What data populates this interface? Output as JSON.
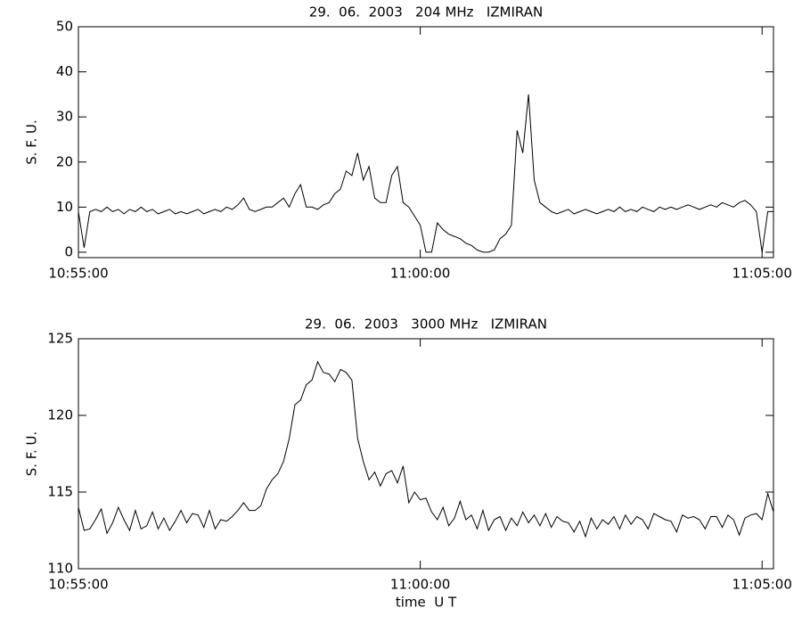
{
  "chart_data": [
    {
      "type": "line",
      "title": "29.  06.  2003   204 MHz   IZMIRAN",
      "y_label": "S. F. U.",
      "xlim": [
        "10:55:00",
        "11:05:10"
      ],
      "xticks": [
        "10:55:00",
        "11:00:00",
        "11:05:00"
      ],
      "ylim": [
        -1.2,
        50
      ],
      "yticks": [
        0,
        10,
        20,
        30,
        40,
        50
      ],
      "color": "#000000",
      "x": [
        "10:55:00",
        "10:55:05",
        "10:55:10",
        "10:55:15",
        "10:55:20",
        "10:55:25",
        "10:55:30",
        "10:55:35",
        "10:55:40",
        "10:55:45",
        "10:55:50",
        "10:55:55",
        "10:56:00",
        "10:56:05",
        "10:56:10",
        "10:56:15",
        "10:56:20",
        "10:56:25",
        "10:56:30",
        "10:56:35",
        "10:56:40",
        "10:56:45",
        "10:56:50",
        "10:56:55",
        "10:57:00",
        "10:57:05",
        "10:57:10",
        "10:57:15",
        "10:57:20",
        "10:57:25",
        "10:57:30",
        "10:57:35",
        "10:57:40",
        "10:57:45",
        "10:57:50",
        "10:57:55",
        "10:58:00",
        "10:58:05",
        "10:58:10",
        "10:58:15",
        "10:58:20",
        "10:58:25",
        "10:58:30",
        "10:58:35",
        "10:58:40",
        "10:58:45",
        "10:58:50",
        "10:58:55",
        "10:59:00",
        "10:59:05",
        "10:59:10",
        "10:59:15",
        "10:59:20",
        "10:59:25",
        "10:59:30",
        "10:59:35",
        "10:59:40",
        "10:59:45",
        "10:59:50",
        "10:59:55",
        "11:00:00",
        "11:00:05",
        "11:00:10",
        "11:00:15",
        "11:00:20",
        "11:00:25",
        "11:00:30",
        "11:00:35",
        "11:00:40",
        "11:00:45",
        "11:00:50",
        "11:00:55",
        "11:01:00",
        "11:01:05",
        "11:01:10",
        "11:01:15",
        "11:01:20",
        "11:01:25",
        "11:01:30",
        "11:01:35",
        "11:01:40",
        "11:01:45",
        "11:01:50",
        "11:01:55",
        "11:02:00",
        "11:02:05",
        "11:02:10",
        "11:02:15",
        "11:02:20",
        "11:02:25",
        "11:02:30",
        "11:02:35",
        "11:02:40",
        "11:02:45",
        "11:02:50",
        "11:02:55",
        "11:03:00",
        "11:03:05",
        "11:03:10",
        "11:03:15",
        "11:03:20",
        "11:03:25",
        "11:03:30",
        "11:03:35",
        "11:03:40",
        "11:03:45",
        "11:03:50",
        "11:03:55",
        "11:04:00",
        "11:04:05",
        "11:04:10",
        "11:04:15",
        "11:04:20",
        "11:04:25",
        "11:04:30",
        "11:04:35",
        "11:04:40",
        "11:04:45",
        "11:04:50",
        "11:04:55",
        "11:05:00",
        "11:05:05",
        "11:05:10"
      ],
      "values": [
        9,
        1,
        9,
        9.5,
        9,
        10,
        9,
        9.5,
        8.5,
        9.5,
        9,
        10,
        9,
        9.5,
        8.5,
        9,
        9.5,
        8.5,
        9,
        8.5,
        9,
        9.5,
        8.5,
        9,
        9.5,
        9,
        10,
        9.5,
        10.5,
        12,
        9.5,
        9,
        9.5,
        10,
        10,
        11,
        12,
        10,
        13,
        15,
        10,
        10,
        9.5,
        10.5,
        11,
        13,
        14,
        18,
        17,
        22,
        16,
        19,
        12,
        11,
        11,
        17,
        19,
        11,
        10,
        8,
        6,
        0,
        0,
        6.5,
        5,
        4,
        3.5,
        3,
        2,
        1.5,
        0.5,
        0,
        0,
        0.5,
        3,
        4,
        6,
        27,
        22,
        35,
        16,
        11,
        10,
        9,
        8.5,
        9,
        9.5,
        8.5,
        9,
        9.5,
        9,
        8.5,
        9,
        9.5,
        9,
        10,
        9,
        9.5,
        9,
        10,
        9.5,
        9,
        10,
        9.5,
        10,
        9.5,
        10,
        10.5,
        10,
        9.5,
        10,
        10.5,
        10,
        11,
        10.5,
        10,
        11,
        11.5,
        10.5,
        9,
        0,
        9,
        9
      ]
    },
    {
      "type": "line",
      "title": "29.  06.  2003   3000 MHz   IZMIRAN",
      "y_label": "S. F. U.",
      "x_label": "time  U T",
      "xlim": [
        "10:55:00",
        "11:05:10"
      ],
      "xticks": [
        "10:55:00",
        "11:00:00",
        "11:05:00"
      ],
      "ylim": [
        110,
        125
      ],
      "yticks": [
        110,
        115,
        120,
        125
      ],
      "color": "#000000",
      "x": [
        "10:55:00",
        "10:55:05",
        "10:55:10",
        "10:55:15",
        "10:55:20",
        "10:55:25",
        "10:55:30",
        "10:55:35",
        "10:55:40",
        "10:55:45",
        "10:55:50",
        "10:55:55",
        "10:56:00",
        "10:56:05",
        "10:56:10",
        "10:56:15",
        "10:56:20",
        "10:56:25",
        "10:56:30",
        "10:56:35",
        "10:56:40",
        "10:56:45",
        "10:56:50",
        "10:56:55",
        "10:57:00",
        "10:57:05",
        "10:57:10",
        "10:57:15",
        "10:57:20",
        "10:57:25",
        "10:57:30",
        "10:57:35",
        "10:57:40",
        "10:57:45",
        "10:57:50",
        "10:57:55",
        "10:58:00",
        "10:58:05",
        "10:58:10",
        "10:58:15",
        "10:58:20",
        "10:58:25",
        "10:58:30",
        "10:58:35",
        "10:58:40",
        "10:58:45",
        "10:58:50",
        "10:58:55",
        "10:59:00",
        "10:59:05",
        "10:59:10",
        "10:59:15",
        "10:59:20",
        "10:59:25",
        "10:59:30",
        "10:59:35",
        "10:59:40",
        "10:59:45",
        "10:59:50",
        "10:59:55",
        "11:00:00",
        "11:00:05",
        "11:00:10",
        "11:00:15",
        "11:00:20",
        "11:00:25",
        "11:00:30",
        "11:00:35",
        "11:00:40",
        "11:00:45",
        "11:00:50",
        "11:00:55",
        "11:01:00",
        "11:01:05",
        "11:01:10",
        "11:01:15",
        "11:01:20",
        "11:01:25",
        "11:01:30",
        "11:01:35",
        "11:01:40",
        "11:01:45",
        "11:01:50",
        "11:01:55",
        "11:02:00",
        "11:02:05",
        "11:02:10",
        "11:02:15",
        "11:02:20",
        "11:02:25",
        "11:02:30",
        "11:02:35",
        "11:02:40",
        "11:02:45",
        "11:02:50",
        "11:02:55",
        "11:03:00",
        "11:03:05",
        "11:03:10",
        "11:03:15",
        "11:03:20",
        "11:03:25",
        "11:03:30",
        "11:03:35",
        "11:03:40",
        "11:03:45",
        "11:03:50",
        "11:03:55",
        "11:04:00",
        "11:04:05",
        "11:04:10",
        "11:04:15",
        "11:04:20",
        "11:04:25",
        "11:04:30",
        "11:04:35",
        "11:04:40",
        "11:04:45",
        "11:04:50",
        "11:04:55",
        "11:05:00",
        "11:05:05",
        "11:05:10"
      ],
      "values": [
        114,
        112.5,
        112.6,
        113.2,
        113.9,
        112.3,
        113,
        114,
        113.2,
        112.5,
        113.8,
        112.6,
        112.8,
        113.7,
        112.6,
        113.3,
        112.5,
        113.1,
        113.8,
        113,
        113.6,
        113.5,
        112.7,
        113.8,
        112.6,
        113.2,
        113.1,
        113.4,
        113.8,
        114.3,
        113.8,
        113.8,
        114.1,
        115.2,
        115.8,
        116.2,
        117,
        118.5,
        120.7,
        121,
        122,
        122.3,
        123.5,
        122.8,
        122.7,
        122.2,
        123,
        122.8,
        122.3,
        118.5,
        117,
        115.8,
        116.3,
        115.4,
        116.2,
        116.4,
        115.6,
        116.7,
        114.3,
        115,
        114.5,
        114.6,
        113.7,
        113.2,
        114,
        112.8,
        113.3,
        114.4,
        113.2,
        113.5,
        112.6,
        113.8,
        112.5,
        113.2,
        113.4,
        112.5,
        113.3,
        112.8,
        113.7,
        113,
        113.5,
        112.8,
        113.6,
        112.7,
        113.4,
        113.1,
        113,
        112.4,
        113.1,
        112.1,
        113.3,
        112.6,
        113.2,
        112.9,
        113.4,
        112.6,
        113.5,
        112.9,
        113.4,
        113.2,
        112.6,
        113.6,
        113.4,
        113.2,
        113.1,
        112.4,
        113.5,
        113.3,
        113.4,
        113.2,
        112.6,
        113.4,
        113.4,
        112.7,
        113.5,
        113.2,
        112.2,
        113.3,
        113.5,
        113.6,
        113.2,
        114.9,
        113.7
      ]
    }
  ]
}
